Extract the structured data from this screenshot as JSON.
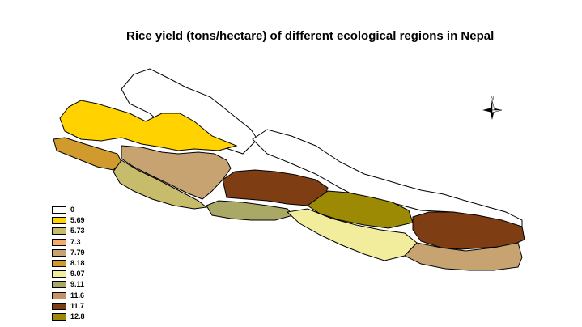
{
  "title": "Rice yield (tons/hectare) of different ecological regions in Nepal",
  "legend": [
    {
      "label": "0",
      "color": "#ffffff"
    },
    {
      "label": "5.69",
      "color": "#ffd200"
    },
    {
      "label": "5.73",
      "color": "#c7bc6c"
    },
    {
      "label": "7.3",
      "color": "#f1ae6a"
    },
    {
      "label": "7.79",
      "color": "#c8a372"
    },
    {
      "label": "8.18",
      "color": "#d09b2c"
    },
    {
      "label": "9.07",
      "color": "#f2ec9d"
    },
    {
      "label": "9.11",
      "color": "#aaa865"
    },
    {
      "label": "11.6",
      "color": "#c79067"
    },
    {
      "label": "11.7",
      "color": "#7f3d14"
    },
    {
      "label": "12.8",
      "color": "#9c8a04"
    }
  ],
  "compass": {
    "north_label": "N"
  }
}
